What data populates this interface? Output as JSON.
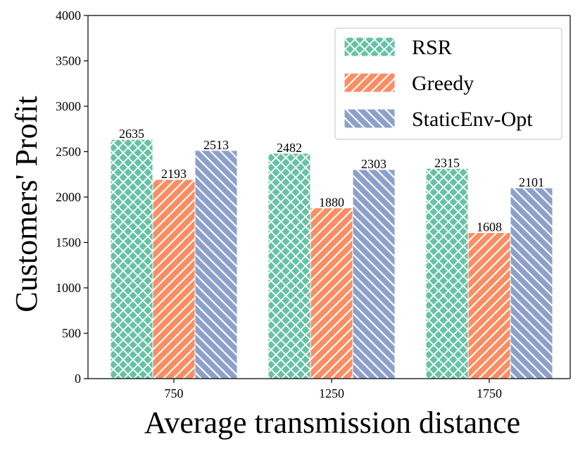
{
  "chart_data": {
    "type": "bar",
    "title": "",
    "xlabel": "Average transmission distance",
    "ylabel": "Customers' Profit",
    "categories": [
      "750",
      "1250",
      "1750"
    ],
    "ylim": [
      0,
      4000
    ],
    "yticks": [
      0,
      500,
      1000,
      1500,
      2000,
      2500,
      3000,
      3500,
      4000
    ],
    "legend_position": "top-right",
    "grid": false,
    "series": [
      {
        "name": "RSR",
        "values": [
          2635,
          2482,
          2315
        ],
        "color": "#66c2a5",
        "hatch": "crosshatch"
      },
      {
        "name": "Greedy",
        "values": [
          2193,
          1880,
          1608
        ],
        "color": "#fc8d62",
        "hatch": "forward-diagonal"
      },
      {
        "name": "StaticEnv-Opt",
        "values": [
          2513,
          2303,
          2101
        ],
        "color": "#8da0cb",
        "hatch": "back-diagonal"
      }
    ]
  }
}
